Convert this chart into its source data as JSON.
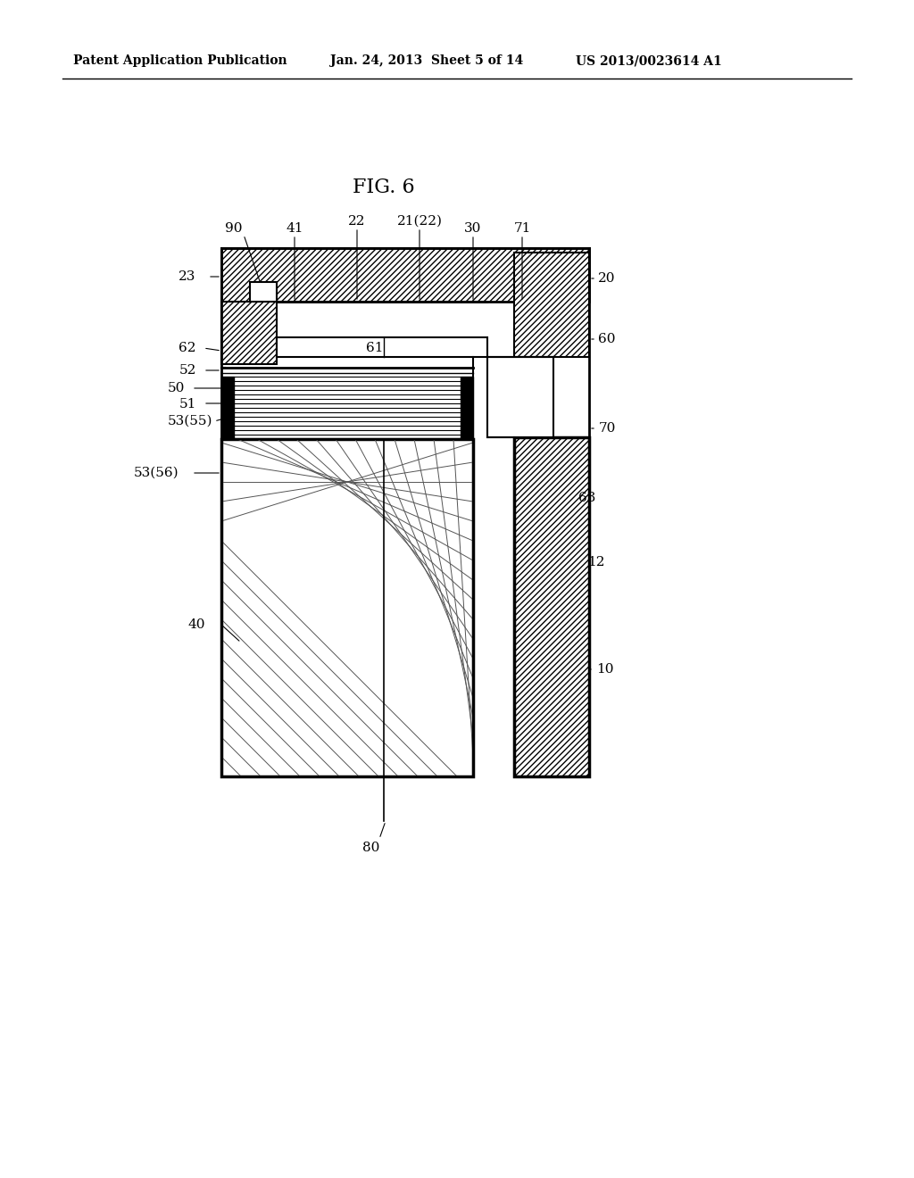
{
  "fig_label": "FIG. 6",
  "header_left": "Patent Application Publication",
  "header_center": "Jan. 24, 2013  Sheet 5 of 14",
  "header_right": "US 2013/0023614 A1",
  "bg_color": "#ffffff",
  "line_color": "#000000"
}
